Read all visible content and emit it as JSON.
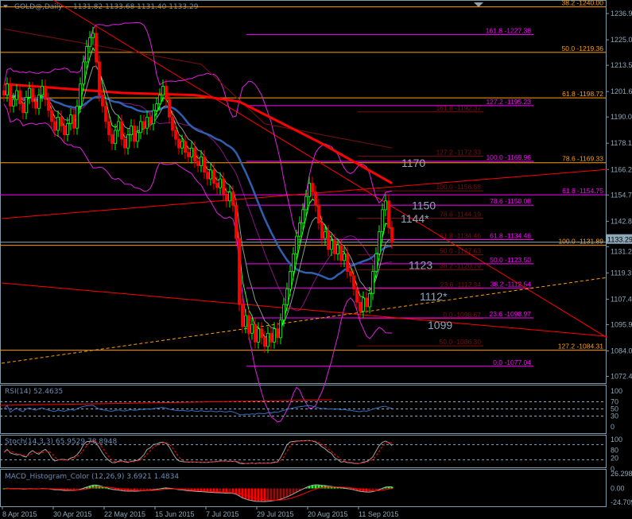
{
  "header": {
    "symbol": "GOLD@,Daily",
    "ohlc": "1131.82 1133.68 1131.40 1133.29"
  },
  "colors": {
    "bg": "#000000",
    "frame": "#7f9aa8",
    "bull": "#00ff00",
    "bear": "#ff0000",
    "sma_mid": "#2e5fb0",
    "bands": "#e020e0",
    "fib_orange": "#ffa000",
    "fib_magenta": "#ff00ff",
    "fib_darkred": "#7a0f0f",
    "level_label": "#8aa6bc"
  },
  "indicators": {
    "rsi": "RSI(14) 52.4635",
    "stoch": "Stoch(14,3,3) 65.9529 78.8948",
    "macd": "MACD_Histogram_Color (12,26,9)  3.6921 1.4834"
  },
  "chart_data": {
    "type": "candlestick",
    "title": "GOLD@,Daily",
    "ylim": [
      1069.4,
      1243.1
    ],
    "y_ticks": [
      "1236.95",
      "1225.05",
      "1213.50",
      "1201.60",
      "1190.05",
      "1178.15",
      "1166.25",
      "1154.70",
      "1142.80",
      "1131.25",
      "1119.35",
      "1107.45",
      "1095.90",
      "1084.00",
      "1072.45"
    ],
    "current_price": "1133.29",
    "x_ticks": [
      {
        "label": "8 Apr 2015",
        "bar": 0
      },
      {
        "label": "30 Apr 2015",
        "bar": 16
      },
      {
        "label": "22 May 2015",
        "bar": 32
      },
      {
        "label": "15 Jun 2015",
        "bar": 48
      },
      {
        "label": "7 Jul 2015",
        "bar": 64
      },
      {
        "label": "29 Jul 2015",
        "bar": 80
      },
      {
        "label": "20 Aug 2015",
        "bar": 96
      },
      {
        "label": "11 Sep 2015",
        "bar": 112
      }
    ],
    "closes": [
      1200,
      1205,
      1195,
      1198,
      1202,
      1196,
      1192,
      1199,
      1203,
      1197,
      1194,
      1200,
      1204,
      1198,
      1193,
      1188,
      1184,
      1190,
      1186,
      1182,
      1187,
      1191,
      1185,
      1195,
      1205,
      1215,
      1222,
      1226,
      1228,
      1215,
      1200,
      1195,
      1188,
      1182,
      1178,
      1184,
      1188,
      1180,
      1176,
      1182,
      1186,
      1179,
      1183,
      1188,
      1185,
      1190,
      1187,
      1193,
      1196,
      1200,
      1204,
      1198,
      1190,
      1184,
      1180,
      1176,
      1179,
      1174,
      1172,
      1176,
      1170,
      1168,
      1172,
      1165,
      1162,
      1166,
      1160,
      1158,
      1162,
      1155,
      1152,
      1156,
      1150,
      1135,
      1105,
      1095,
      1100,
      1092,
      1096,
      1088,
      1094,
      1090,
      1086,
      1092,
      1088,
      1094,
      1090,
      1098,
      1105,
      1112,
      1120,
      1128,
      1136,
      1142,
      1148,
      1154,
      1160,
      1156,
      1150,
      1142,
      1135,
      1138,
      1130,
      1134,
      1128,
      1132,
      1125,
      1128,
      1120,
      1118,
      1112,
      1106,
      1102,
      1108,
      1104,
      1110,
      1120,
      1128,
      1138,
      1148,
      1152,
      1140,
      1133.29
    ],
    "slow_ma": [
      [
        0,
        1205
      ],
      [
        37,
        1201
      ],
      [
        60,
        1200
      ],
      [
        74,
        1197
      ],
      [
        100,
        1178
      ],
      [
        122,
        1160
      ]
    ],
    "slower_ma": [
      [
        0,
        1230
      ],
      [
        62,
        1214
      ],
      [
        82,
        1187
      ],
      [
        100,
        1182
      ],
      [
        122,
        1176
      ]
    ],
    "fib_orange": [
      {
        "label": "38.2 -1240.00",
        "price": 1240.0
      },
      {
        "label": "50.0 -1219.36",
        "price": 1219.36
      },
      {
        "label": "61.8 -1198.72",
        "price": 1198.72
      },
      {
        "label": "78.6 -1169.33",
        "price": 1169.33
      },
      {
        "label": "100.0 -1131.89",
        "price": 1131.89
      },
      {
        "label": "127.2 -1084.31",
        "price": 1084.31
      }
    ],
    "fib_magenta_full": [
      {
        "label": "61.8 -1154.75",
        "price": 1154.75
      }
    ],
    "fib_magenta": [
      {
        "label": "161.8 -1227.38",
        "price": 1227.38
      },
      {
        "label": "127.2 -1195.23",
        "price": 1195.23
      },
      {
        "label": "100.0 -1169.96",
        "price": 1169.96
      },
      {
        "label": "78.6 -1150.08",
        "price": 1150.08
      },
      {
        "label": "61.8 -1134.46",
        "price": 1134.46
      },
      {
        "label": "50.0 -1123.50",
        "price": 1123.5
      },
      {
        "label": "38.2 -1112.54",
        "price": 1112.54
      },
      {
        "label": "23.6 -1098.97",
        "price": 1098.97
      },
      {
        "label": "0.0 -1077.04",
        "price": 1077.04
      }
    ],
    "fib_darkred": [
      {
        "label": "161.8 -1192.37",
        "price": 1192.37
      },
      {
        "label": "127.2 -1172.33",
        "price": 1172.33
      },
      {
        "label": "100.0 -1156.58",
        "price": 1156.58
      },
      {
        "label": "78.6 -1144.19",
        "price": 1144.19
      },
      {
        "label": "61.8 -1134.46",
        "price": 1134.46
      },
      {
        "label": "50.0 -1127.63",
        "price": 1127.63
      },
      {
        "label": "38.2 -1120.79",
        "price": 1120.79
      },
      {
        "label": "23.6 -1112.34",
        "price": 1112.34
      },
      {
        "label": "0.0 -1098.67",
        "price": 1098.67
      },
      {
        "label": "50.0 -1086.30",
        "price": 1086.3
      }
    ],
    "level_labels": [
      {
        "text": "1170",
        "price": 1170
      },
      {
        "text": "1150",
        "price": 1150
      },
      {
        "text": "1144*",
        "price": 1144
      },
      {
        "text": "1123",
        "price": 1123
      },
      {
        "text": "1112*",
        "price": 1112
      },
      {
        "text": "1099",
        "price": 1099
      }
    ],
    "trendlines": [
      {
        "color": "#ff0000",
        "dashed": false,
        "from": [
          15.5,
          1243.1
        ],
        "to": [
          189.75,
          1089.9
        ]
      },
      {
        "color": "#ff0000",
        "dashed": false,
        "from": [
          -0.75,
          1144.0
        ],
        "to": [
          189.75,
          1166.3
        ]
      },
      {
        "color": "#ff0000",
        "dashed": false,
        "from": [
          -0.75,
          1114.8
        ],
        "to": [
          189.75,
          1090.6
        ]
      },
      {
        "color": "#ffa000",
        "dashed": true,
        "from": [
          -0.75,
          1078.4
        ],
        "to": [
          189.75,
          1117.3
        ]
      }
    ],
    "rsi_levels": [
      70,
      50,
      30
    ],
    "rsi_ticks": [
      "100",
      "70",
      "50",
      "30",
      "0"
    ],
    "stoch_levels": [
      80,
      20
    ],
    "stoch_ticks": [
      "100",
      "80",
      "20",
      "0"
    ],
    "macd_ticks": [
      "26.2982",
      "0.00",
      "-24.7093"
    ],
    "macd_range": [
      -24.7093,
      26.2982
    ]
  }
}
